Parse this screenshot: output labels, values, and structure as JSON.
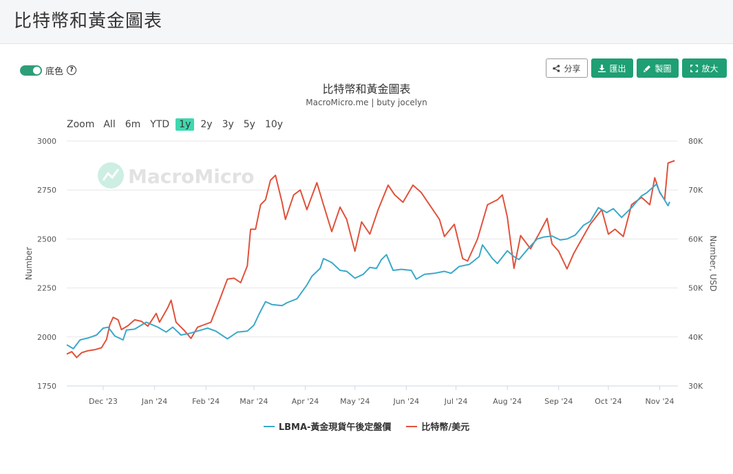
{
  "page": {
    "title": "比特幣和黃金圖表"
  },
  "toolbar": {
    "toggle_label": "底色",
    "help_glyph": "?",
    "share_label": "分享",
    "export_label": "匯出",
    "draw_label": "製圖",
    "zoom_label": "放大",
    "icons": {
      "share": "share-icon",
      "export": "download-icon",
      "draw": "pencil-icon",
      "zoom": "expand-icon"
    }
  },
  "zoom": {
    "label": "Zoom",
    "options": [
      "All",
      "6m",
      "YTD",
      "1y",
      "2y",
      "3y",
      "5y",
      "10y"
    ],
    "active": "1y"
  },
  "watermark": "MacroMicro",
  "colors": {
    "gold": "#3aa8c9",
    "bitcoin": "#e0513a",
    "accent": "#1e9f74",
    "zoom_active": "#3fd8ae"
  },
  "chart_data": {
    "type": "line",
    "title": "比特幣和黃金圖表",
    "subtitle": "MacroMicro.me | buty jocelyn",
    "ylabel": "Number",
    "y2label": "Number, USD",
    "ylim": [
      1750,
      3000
    ],
    "y2lim": [
      30000,
      80000
    ],
    "yticks": [
      1750,
      2000,
      2250,
      2500,
      2750,
      3000
    ],
    "y2ticks": [
      "30K",
      "40K",
      "50K",
      "60K",
      "70K",
      "80K"
    ],
    "xlim": [
      "2023-11-09",
      "2024-11-12"
    ],
    "xticks": [
      {
        "label": "Dec '23",
        "date": "2023-12-01"
      },
      {
        "label": "Jan '24",
        "date": "2024-01-01"
      },
      {
        "label": "Feb '24",
        "date": "2024-02-01"
      },
      {
        "label": "Mar '24",
        "date": "2024-03-01"
      },
      {
        "label": "Apr '24",
        "date": "2024-04-01"
      },
      {
        "label": "May '24",
        "date": "2024-05-01"
      },
      {
        "label": "Jun '24",
        "date": "2024-06-01"
      },
      {
        "label": "Jul '24",
        "date": "2024-07-01"
      },
      {
        "label": "Aug '24",
        "date": "2024-08-01"
      },
      {
        "label": "Sep '24",
        "date": "2024-09-01"
      },
      {
        "label": "Oct '24",
        "date": "2024-10-01"
      },
      {
        "label": "Nov '24",
        "date": "2024-11-01"
      }
    ],
    "grid": true,
    "legend": "bottom",
    "series": [
      {
        "name": "LBMA-黃金現貨午後定盤價",
        "axis": "left",
        "points": [
          [
            "2023-11-09",
            1960
          ],
          [
            "2023-11-13",
            1940
          ],
          [
            "2023-11-17",
            1985
          ],
          [
            "2023-11-22",
            1995
          ],
          [
            "2023-11-27",
            2010
          ],
          [
            "2023-12-01",
            2045
          ],
          [
            "2023-12-04",
            2050
          ],
          [
            "2023-12-08",
            2005
          ],
          [
            "2023-12-13",
            1985
          ],
          [
            "2023-12-15",
            2035
          ],
          [
            "2023-12-20",
            2040
          ],
          [
            "2023-12-27",
            2075
          ],
          [
            "2024-01-03",
            2050
          ],
          [
            "2024-01-08",
            2025
          ],
          [
            "2024-01-12",
            2050
          ],
          [
            "2024-01-17",
            2010
          ],
          [
            "2024-01-23",
            2020
          ],
          [
            "2024-01-29",
            2035
          ],
          [
            "2024-02-02",
            2045
          ],
          [
            "2024-02-07",
            2030
          ],
          [
            "2024-02-14",
            1990
          ],
          [
            "2024-02-20",
            2025
          ],
          [
            "2024-02-26",
            2030
          ],
          [
            "2024-03-01",
            2060
          ],
          [
            "2024-03-04",
            2115
          ],
          [
            "2024-03-08",
            2180
          ],
          [
            "2024-03-12",
            2165
          ],
          [
            "2024-03-18",
            2160
          ],
          [
            "2024-03-21",
            2175
          ],
          [
            "2024-03-27",
            2195
          ],
          [
            "2024-04-02",
            2265
          ],
          [
            "2024-04-05",
            2310
          ],
          [
            "2024-04-10",
            2350
          ],
          [
            "2024-04-12",
            2400
          ],
          [
            "2024-04-17",
            2380
          ],
          [
            "2024-04-22",
            2340
          ],
          [
            "2024-04-26",
            2335
          ],
          [
            "2024-05-01",
            2300
          ],
          [
            "2024-05-06",
            2320
          ],
          [
            "2024-05-10",
            2355
          ],
          [
            "2024-05-14",
            2350
          ],
          [
            "2024-05-17",
            2395
          ],
          [
            "2024-05-20",
            2420
          ],
          [
            "2024-05-24",
            2340
          ],
          [
            "2024-05-29",
            2345
          ],
          [
            "2024-06-04",
            2340
          ],
          [
            "2024-06-07",
            2295
          ],
          [
            "2024-06-12",
            2320
          ],
          [
            "2024-06-18",
            2325
          ],
          [
            "2024-06-24",
            2335
          ],
          [
            "2024-06-28",
            2325
          ],
          [
            "2024-07-03",
            2360
          ],
          [
            "2024-07-09",
            2370
          ],
          [
            "2024-07-15",
            2410
          ],
          [
            "2024-07-17",
            2470
          ],
          [
            "2024-07-23",
            2400
          ],
          [
            "2024-07-26",
            2375
          ],
          [
            "2024-08-01",
            2440
          ],
          [
            "2024-08-05",
            2410
          ],
          [
            "2024-08-08",
            2395
          ],
          [
            "2024-08-14",
            2455
          ],
          [
            "2024-08-19",
            2500
          ],
          [
            "2024-08-23",
            2510
          ],
          [
            "2024-08-28",
            2515
          ],
          [
            "2024-09-02",
            2495
          ],
          [
            "2024-09-06",
            2500
          ],
          [
            "2024-09-11",
            2520
          ],
          [
            "2024-09-16",
            2570
          ],
          [
            "2024-09-20",
            2590
          ],
          [
            "2024-09-25",
            2660
          ],
          [
            "2024-09-30",
            2635
          ],
          [
            "2024-10-04",
            2655
          ],
          [
            "2024-10-09",
            2610
          ],
          [
            "2024-10-15",
            2660
          ],
          [
            "2024-10-21",
            2720
          ],
          [
            "2024-10-24",
            2735
          ],
          [
            "2024-10-30",
            2780
          ],
          [
            "2024-11-01",
            2740
          ],
          [
            "2024-11-06",
            2670
          ],
          [
            "2024-11-07",
            2690
          ]
        ]
      },
      {
        "name": "比特幣/美元",
        "axis": "right",
        "points": [
          [
            "2023-11-09",
            36500
          ],
          [
            "2023-11-12",
            37000
          ],
          [
            "2023-11-15",
            35800
          ],
          [
            "2023-11-18",
            36800
          ],
          [
            "2023-11-22",
            37200
          ],
          [
            "2023-11-26",
            37400
          ],
          [
            "2023-11-30",
            37800
          ],
          [
            "2023-12-03",
            39500
          ],
          [
            "2023-12-05",
            42500
          ],
          [
            "2023-12-07",
            44000
          ],
          [
            "2023-12-10",
            43500
          ],
          [
            "2023-12-12",
            41500
          ],
          [
            "2023-12-16",
            42300
          ],
          [
            "2023-12-20",
            43500
          ],
          [
            "2023-12-24",
            43200
          ],
          [
            "2023-12-28",
            42200
          ],
          [
            "2024-01-02",
            44800
          ],
          [
            "2024-01-04",
            43000
          ],
          [
            "2024-01-09",
            46000
          ],
          [
            "2024-01-11",
            47500
          ],
          [
            "2024-01-14",
            43000
          ],
          [
            "2024-01-19",
            41300
          ],
          [
            "2024-01-23",
            39700
          ],
          [
            "2024-01-27",
            42000
          ],
          [
            "2024-01-31",
            42500
          ],
          [
            "2024-02-04",
            43000
          ],
          [
            "2024-02-09",
            47300
          ],
          [
            "2024-02-14",
            51800
          ],
          [
            "2024-02-18",
            52000
          ],
          [
            "2024-02-22",
            51100
          ],
          [
            "2024-02-26",
            54500
          ],
          [
            "2024-02-28",
            62000
          ],
          [
            "2024-03-02",
            62000
          ],
          [
            "2024-03-05",
            67000
          ],
          [
            "2024-03-08",
            68000
          ],
          [
            "2024-03-11",
            72000
          ],
          [
            "2024-03-14",
            73000
          ],
          [
            "2024-03-18",
            67500
          ],
          [
            "2024-03-20",
            64000
          ],
          [
            "2024-03-25",
            69000
          ],
          [
            "2024-03-29",
            70000
          ],
          [
            "2024-04-02",
            66000
          ],
          [
            "2024-04-08",
            71500
          ],
          [
            "2024-04-12",
            67000
          ],
          [
            "2024-04-17",
            61500
          ],
          [
            "2024-04-22",
            66500
          ],
          [
            "2024-04-26",
            64000
          ],
          [
            "2024-05-01",
            57500
          ],
          [
            "2024-05-05",
            63500
          ],
          [
            "2024-05-10",
            61000
          ],
          [
            "2024-05-15",
            66000
          ],
          [
            "2024-05-21",
            71000
          ],
          [
            "2024-05-25",
            69000
          ],
          [
            "2024-05-30",
            67500
          ],
          [
            "2024-06-05",
            71000
          ],
          [
            "2024-06-10",
            69500
          ],
          [
            "2024-06-16",
            66500
          ],
          [
            "2024-06-21",
            64000
          ],
          [
            "2024-06-24",
            60500
          ],
          [
            "2024-06-30",
            63000
          ],
          [
            "2024-07-05",
            56000
          ],
          [
            "2024-07-08",
            55500
          ],
          [
            "2024-07-14",
            60000
          ],
          [
            "2024-07-20",
            67000
          ],
          [
            "2024-07-26",
            68000
          ],
          [
            "2024-07-29",
            69000
          ],
          [
            "2024-08-01",
            64500
          ],
          [
            "2024-08-05",
            54000
          ],
          [
            "2024-08-09",
            60700
          ],
          [
            "2024-08-15",
            58000
          ],
          [
            "2024-08-20",
            61000
          ],
          [
            "2024-08-25",
            64200
          ],
          [
            "2024-08-28",
            59000
          ],
          [
            "2024-09-01",
            57500
          ],
          [
            "2024-09-06",
            53900
          ],
          [
            "2024-09-10",
            57000
          ],
          [
            "2024-09-15",
            60000
          ],
          [
            "2024-09-20",
            63000
          ],
          [
            "2024-09-27",
            66000
          ],
          [
            "2024-10-01",
            61000
          ],
          [
            "2024-10-05",
            62000
          ],
          [
            "2024-10-10",
            60500
          ],
          [
            "2024-10-15",
            67000
          ],
          [
            "2024-10-21",
            68500
          ],
          [
            "2024-10-26",
            67000
          ],
          [
            "2024-10-29",
            72500
          ],
          [
            "2024-11-01",
            69500
          ],
          [
            "2024-11-04",
            68000
          ],
          [
            "2024-11-06",
            75500
          ],
          [
            "2024-11-10",
            76000
          ]
        ]
      }
    ]
  }
}
